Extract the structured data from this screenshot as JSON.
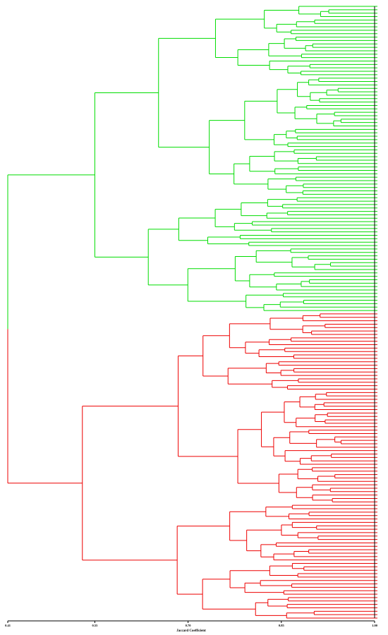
{
  "chart_data": {
    "type": "dendrogram",
    "xlabel": "Jaccard Coefficient",
    "xlim": [
      0.41,
      1.0
    ],
    "ticks": [
      {
        "value": 0.41,
        "label": "0.41"
      },
      {
        "value": 0.55,
        "label": "0.55"
      },
      {
        "value": 0.7,
        "label": "0.70"
      },
      {
        "value": 0.85,
        "label": "0.85"
      },
      {
        "value": 1.0,
        "label": "1.00"
      }
    ],
    "clusters": [
      {
        "color": "#00dd00",
        "leaves": 90
      },
      {
        "color": "#ee0000",
        "leaves": 90
      }
    ]
  }
}
